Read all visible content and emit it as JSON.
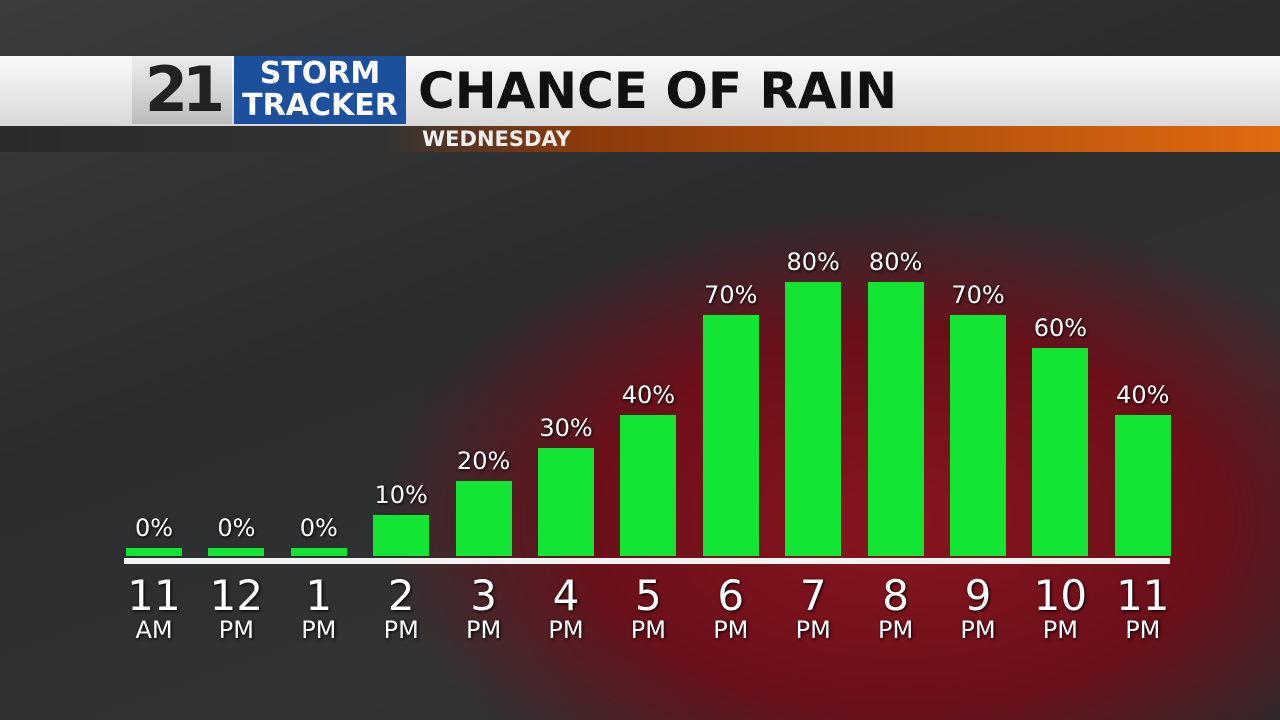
{
  "logo": {
    "number": "21",
    "line1": "STORM",
    "line2": "TRACKER"
  },
  "chart_data": {
    "type": "bar",
    "title": "CHANCE OF RAIN",
    "subtitle": "WEDNESDAY",
    "categories": [
      "11\nAM",
      "12\nPM",
      "1\nPM",
      "2\nPM",
      "3\nPM",
      "4\nPM",
      "5\nPM",
      "6\nPM",
      "7\nPM",
      "8\nPM",
      "9\nPM",
      "10\nPM",
      "11\nPM"
    ],
    "values": [
      0,
      0,
      0,
      10,
      20,
      30,
      40,
      70,
      80,
      80,
      70,
      60,
      40
    ],
    "value_labels": [
      "0%",
      "0%",
      "0%",
      "10%",
      "20%",
      "30%",
      "40%",
      "70%",
      "80%",
      "80%",
      "70%",
      "60%",
      "40%"
    ],
    "color": "#12e534"
  }
}
